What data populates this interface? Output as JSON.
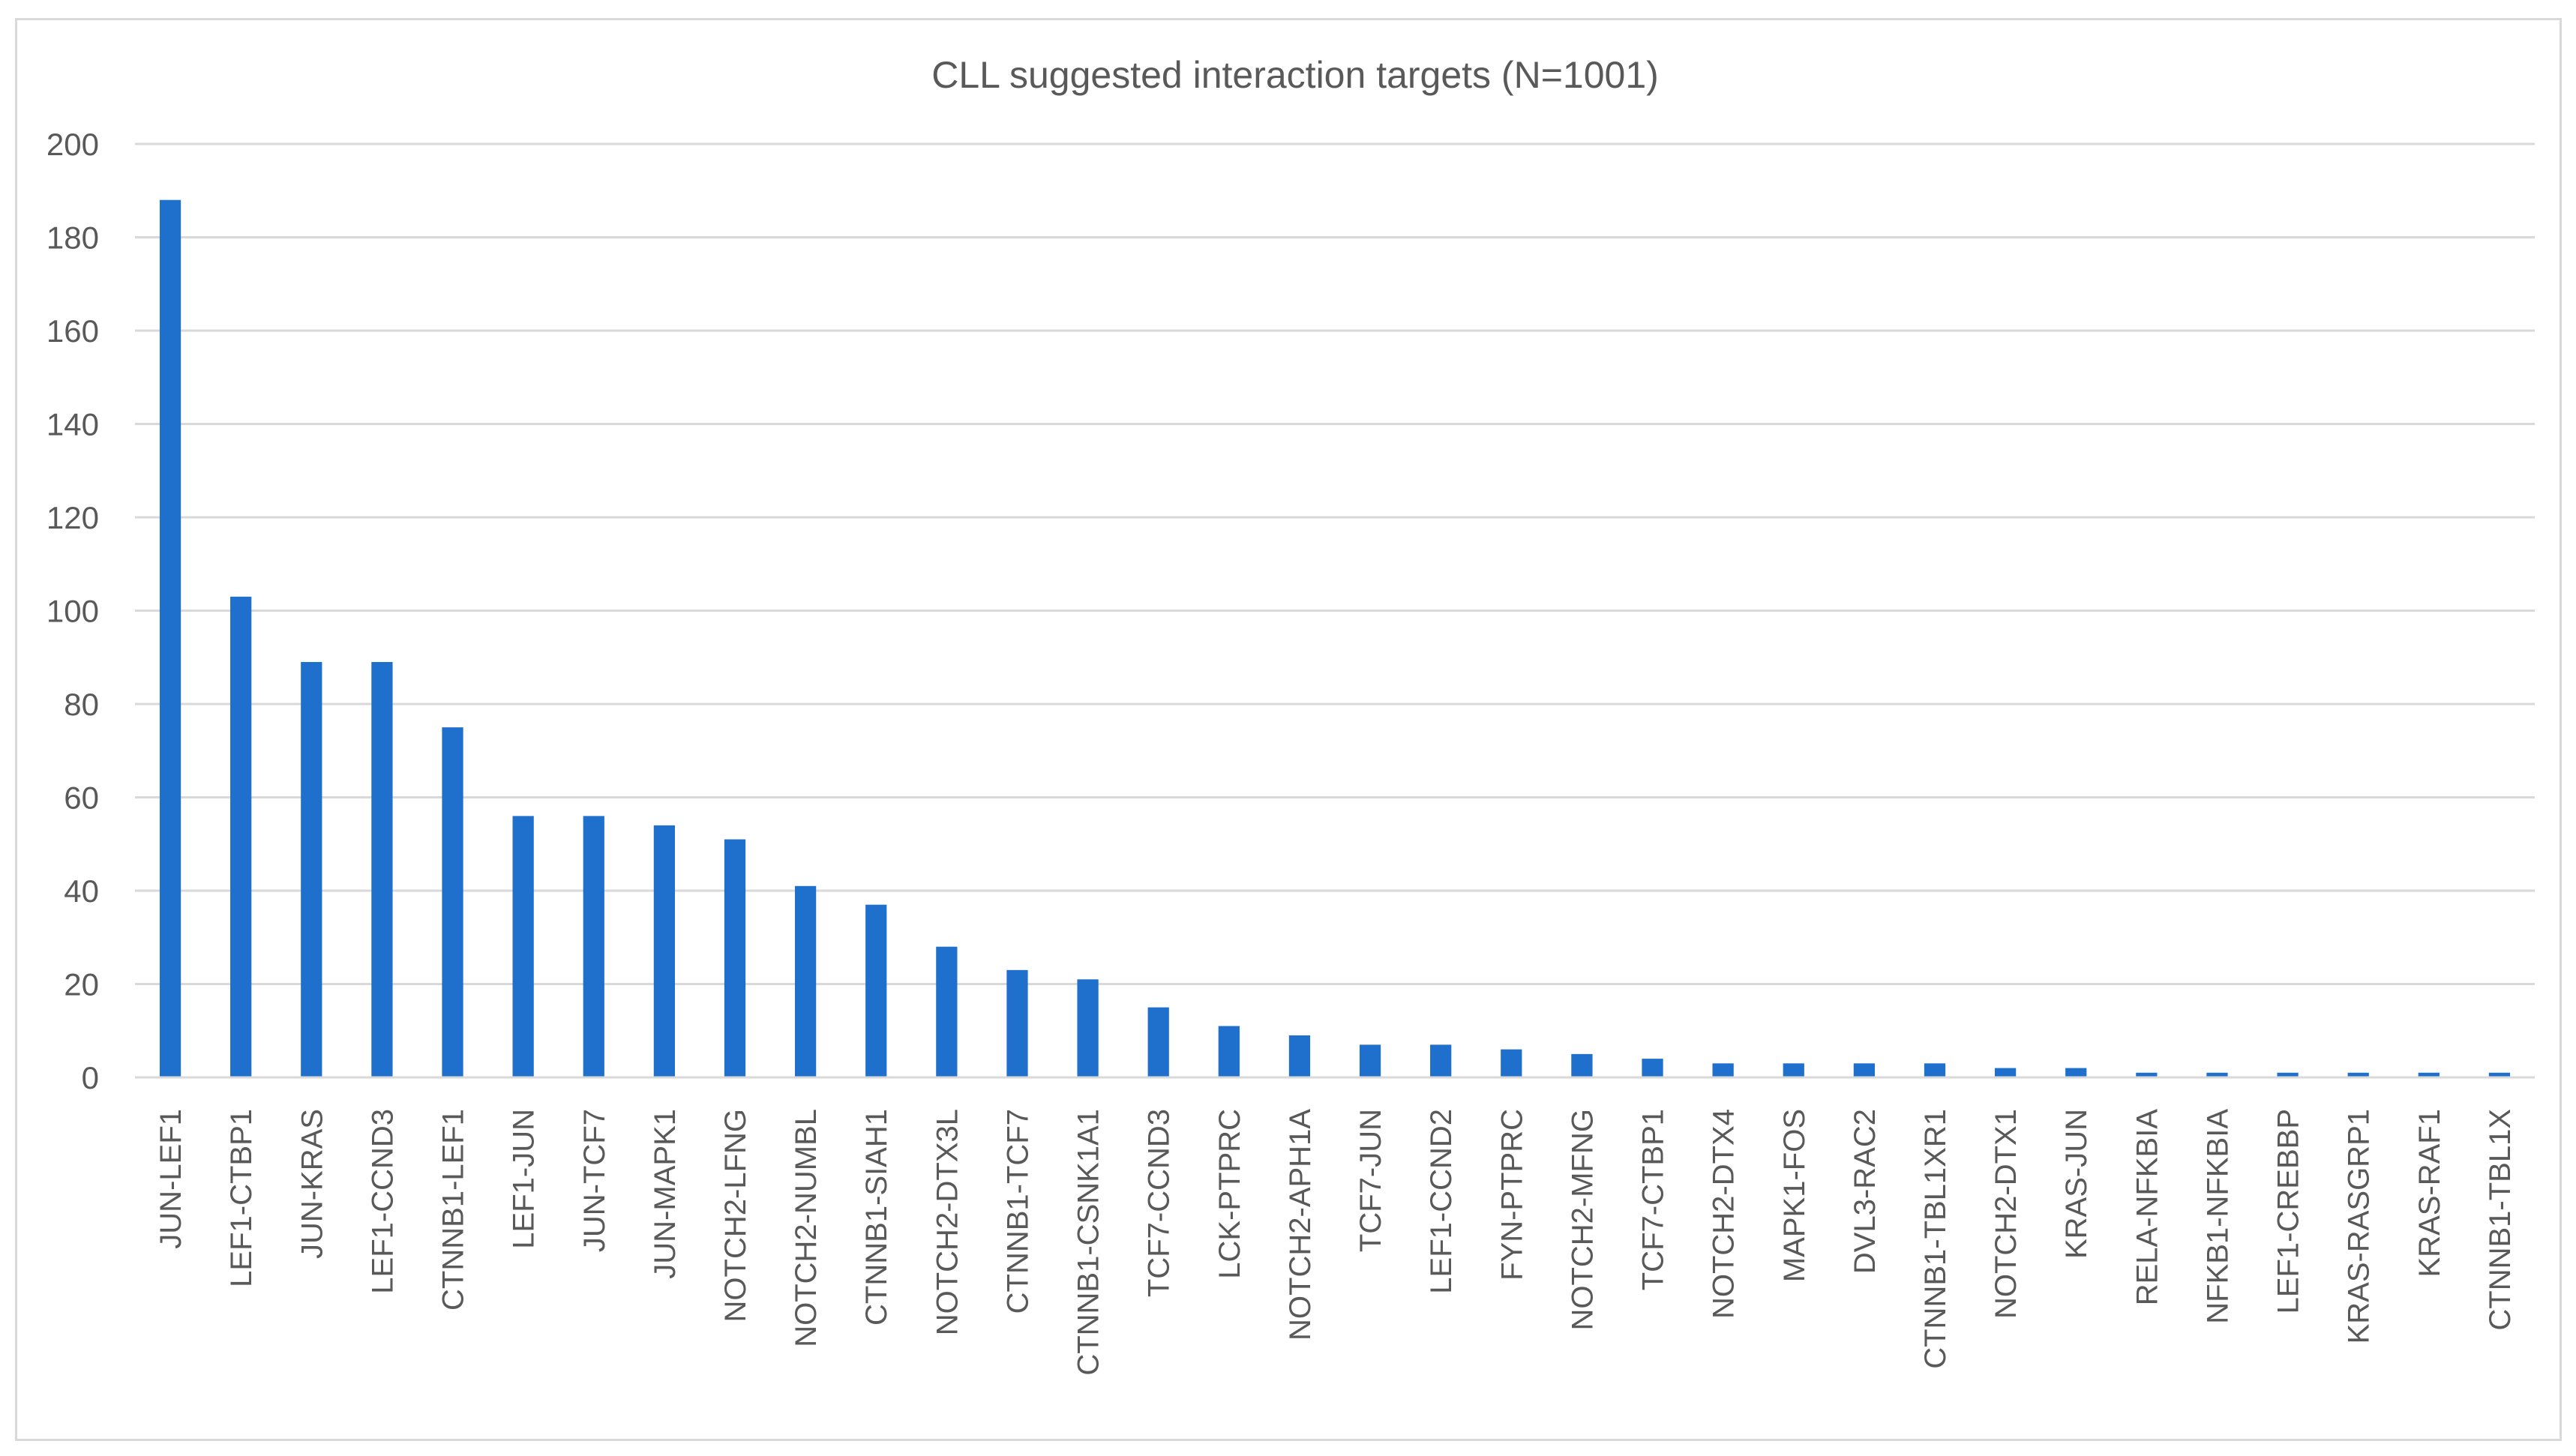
{
  "chart_data": {
    "type": "bar",
    "title": "CLL suggested interaction targets (N=1001)",
    "xlabel": "",
    "ylabel": "",
    "ylim": [
      0,
      200
    ],
    "yticks": [
      0,
      20,
      40,
      60,
      80,
      100,
      120,
      140,
      160,
      180,
      200
    ],
    "grid": true,
    "legend": "none",
    "bar_color": "#1f6fcc",
    "categories": [
      "JUN-LEF1",
      "LEF1-CTBP1",
      "JUN-KRAS",
      "LEF1-CCND3",
      "CTNNB1-LEF1",
      "LEF1-JUN",
      "JUN-TCF7",
      "JUN-MAPK1",
      "NOTCH2-LFNG",
      "NOTCH2-NUMBL",
      "CTNNB1-SIAH1",
      "NOTCH2-DTX3L",
      "CTNNB1-TCF7",
      "CTNNB1-CSNK1A1",
      "TCF7-CCND3",
      "LCK-PTPRC",
      "NOTCH2-APH1A",
      "TCF7-JUN",
      "LEF1-CCND2",
      "FYN-PTPRC",
      "NOTCH2-MFNG",
      "TCF7-CTBP1",
      "NOTCH2-DTX4",
      "MAPK1-FOS",
      "DVL3-RAC2",
      "CTNNB1-TBL1XR1",
      "NOTCH2-DTX1",
      "KRAS-JUN",
      "RELA-NFKBIA",
      "NFKB1-NFKBIA",
      "LEF1-CREBBP",
      "KRAS-RASGRP1",
      "KRAS-RAF1",
      "CTNNB1-TBL1X"
    ],
    "values": [
      188,
      103,
      89,
      89,
      75,
      56,
      56,
      54,
      51,
      41,
      37,
      28,
      23,
      21,
      15,
      11,
      9,
      7,
      7,
      6,
      5,
      4,
      3,
      3,
      3,
      3,
      2,
      2,
      1,
      1,
      1,
      1,
      1,
      1
    ]
  }
}
